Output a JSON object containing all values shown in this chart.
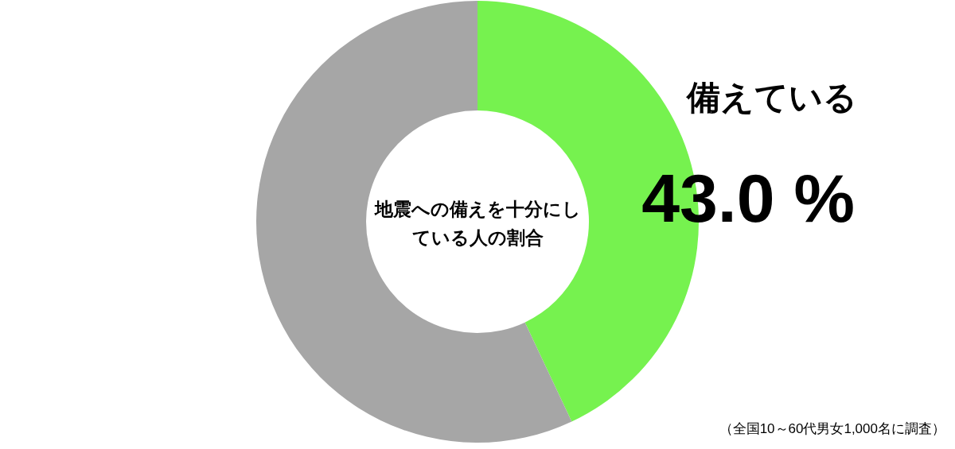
{
  "chart_data": {
    "type": "donut",
    "title": "地震への備えを十分にしている人の割合",
    "categories": [
      "備えている",
      null
    ],
    "values": [
      43.0,
      57.0
    ],
    "colors": [
      "#76f24f",
      "#a6a6a6"
    ],
    "value_labels": [
      "43.0 %",
      null
    ],
    "annotations": [
      "（全国10～60代男女1,000名に調査）"
    ]
  }
}
